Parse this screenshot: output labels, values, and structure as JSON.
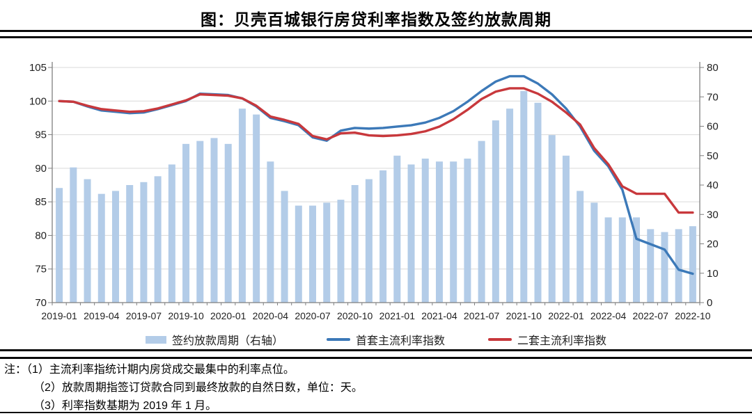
{
  "title": "图：贝壳百城银行房贷利率指数及签约放款周期",
  "notes": {
    "lines": [
      "注：（1）主流利率指统计期内房贷成交最集中的利率点位。",
      "（2）放款周期指签订贷款合同到最终放款的自然日数，单位：天。",
      "（3）利率指数基期为 2019 年 1 月。"
    ]
  },
  "colors": {
    "bar": "#B3CCE8",
    "line_first": "#3C79B8",
    "line_second": "#C8383C",
    "grid": "#D9D9D9",
    "axis": "#7F7F7F",
    "tick_text": "#1F1F1F",
    "rule": "#0A0A0A"
  },
  "chart_data": {
    "type": "combo (bar + line)",
    "x": [
      "2019-01",
      "2019-02",
      "2019-03",
      "2019-04",
      "2019-05",
      "2019-06",
      "2019-07",
      "2019-08",
      "2019-09",
      "2019-10",
      "2019-11",
      "2019-12",
      "2020-01",
      "2020-02",
      "2020-03",
      "2020-04",
      "2020-05",
      "2020-06",
      "2020-07",
      "2020-08",
      "2020-09",
      "2020-10",
      "2020-11",
      "2020-12",
      "2021-01",
      "2021-02",
      "2021-03",
      "2021-04",
      "2021-05",
      "2021-06",
      "2021-07",
      "2021-08",
      "2021-09",
      "2021-10",
      "2021-11",
      "2021-12",
      "2022-01",
      "2022-02",
      "2022-03",
      "2022-04",
      "2022-05",
      "2022-06",
      "2022-07",
      "2022-08",
      "2022-09",
      "2022-10"
    ],
    "x_label_every": 3,
    "x_tick_labels": [
      "2019-01",
      "2019-04",
      "2019-07",
      "2019-10",
      "2020-01",
      "2020-04",
      "2020-07",
      "2020-10",
      "2021-01",
      "2021-04",
      "2021-07",
      "2021-10",
      "2022-01",
      "2022-04",
      "2022-07",
      "2022-10"
    ],
    "left_axis": {
      "min": 70,
      "max": 105,
      "ticks": [
        70,
        75,
        80,
        85,
        90,
        95,
        100,
        105
      ]
    },
    "right_axis": {
      "min": 0,
      "max": 80,
      "ticks": [
        0,
        10,
        20,
        30,
        40,
        50,
        60,
        70,
        80
      ]
    },
    "grid": "horizontal only",
    "legend_position": "bottom",
    "series": [
      {
        "name": "签约放款周期（右轴）",
        "type": "bar",
        "axis": "right",
        "unit": "天",
        "color": "#B3CCE8",
        "values": [
          39,
          46,
          42,
          37,
          38,
          40,
          41,
          43,
          47,
          54,
          55,
          56,
          54,
          66,
          64,
          48,
          38,
          33,
          33,
          34,
          35,
          40,
          42,
          45,
          50,
          47,
          49,
          48,
          48,
          49,
          55,
          62,
          66,
          72,
          68,
          57,
          50,
          38,
          34,
          29,
          29,
          29,
          25,
          24,
          25,
          26
        ]
      },
      {
        "name": "首套主流利率指数",
        "type": "line",
        "axis": "left",
        "color": "#3C79B8",
        "values": [
          100,
          99.9,
          99.2,
          98.6,
          98.4,
          98.2,
          98.3,
          98.8,
          99.4,
          100,
          101.1,
          101,
          100.9,
          100.4,
          99.2,
          97.5,
          97,
          96.4,
          94.6,
          94.1,
          95.6,
          96,
          95.9,
          96,
          96.2,
          96.4,
          96.8,
          97.5,
          98.5,
          99.9,
          101.5,
          102.9,
          103.7,
          103.7,
          102.6,
          101,
          98.9,
          96.2,
          92.6,
          90.3,
          86.8,
          79.5,
          78.7,
          77.9,
          74.9,
          74.3
        ]
      },
      {
        "name": "二套主流利率指数",
        "type": "line",
        "axis": "left",
        "color": "#C8383C",
        "values": [
          100,
          99.9,
          99.3,
          98.8,
          98.6,
          98.4,
          98.5,
          98.9,
          99.5,
          100.1,
          101,
          100.9,
          100.8,
          100.4,
          99.3,
          97.7,
          97.2,
          96.6,
          94.8,
          94.3,
          95.2,
          95.3,
          94.9,
          94.8,
          94.9,
          95.1,
          95.5,
          96.2,
          97.3,
          98.7,
          100.3,
          101.4,
          101.9,
          101.9,
          101.1,
          99.9,
          98.3,
          96.5,
          93,
          90.6,
          87.3,
          86.2,
          86.2,
          86.2,
          83.4,
          83.4
        ]
      }
    ]
  }
}
